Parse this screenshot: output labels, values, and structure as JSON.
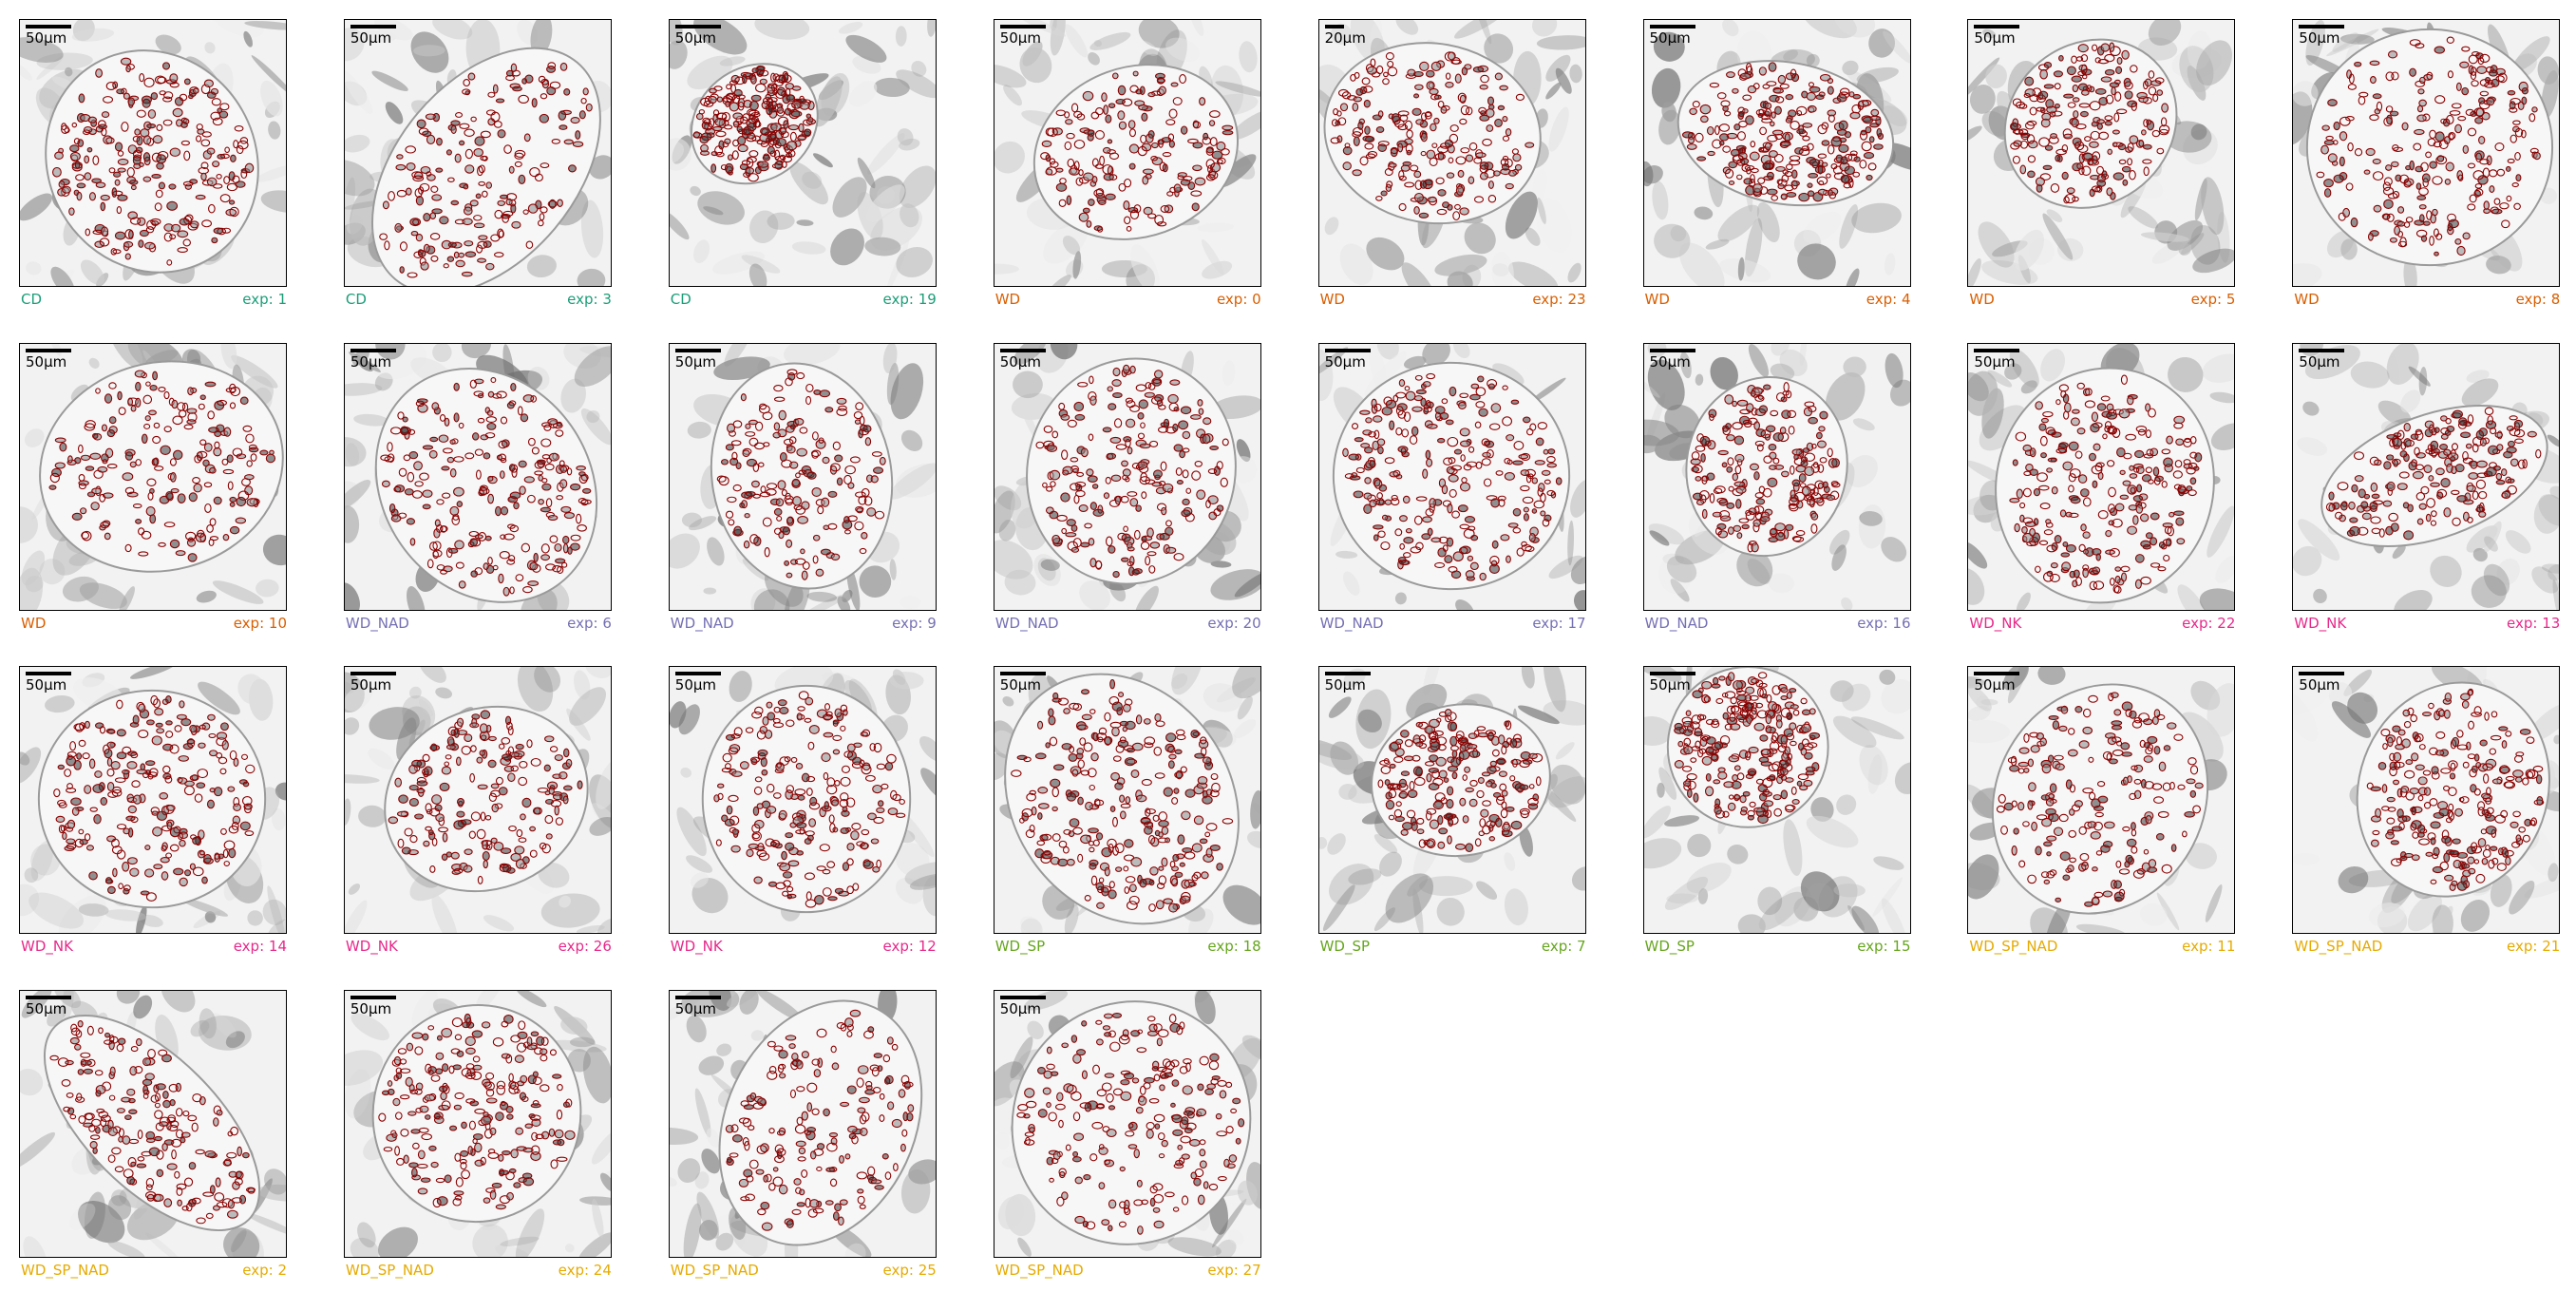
{
  "colors": {
    "CD": "#1b9e77",
    "WD": "#d95f02",
    "WD_NAD": "#7570b3",
    "WD_NK": "#e7298a",
    "WD_SP": "#66a61e",
    "WD_SP_NAD": "#e6ab02",
    "contour": "#8b0000"
  },
  "panels": [
    {
      "group": "CD",
      "exp": "exp: 1",
      "scale": "50μm"
    },
    {
      "group": "CD",
      "exp": "exp: 3",
      "scale": "50μm"
    },
    {
      "group": "CD",
      "exp": "exp: 19",
      "scale": "50μm"
    },
    {
      "group": "WD",
      "exp": "exp: 0",
      "scale": "50μm"
    },
    {
      "group": "WD",
      "exp": "exp: 23",
      "scale": "20μm"
    },
    {
      "group": "WD",
      "exp": "exp: 4",
      "scale": "50μm"
    },
    {
      "group": "WD",
      "exp": "exp: 5",
      "scale": "50μm"
    },
    {
      "group": "WD",
      "exp": "exp: 8",
      "scale": "50μm"
    },
    {
      "group": "WD",
      "exp": "exp: 10",
      "scale": "50μm"
    },
    {
      "group": "WD_NAD",
      "exp": "exp: 6",
      "scale": "50μm"
    },
    {
      "group": "WD_NAD",
      "exp": "exp: 9",
      "scale": "50μm"
    },
    {
      "group": "WD_NAD",
      "exp": "exp: 20",
      "scale": "50μm"
    },
    {
      "group": "WD_NAD",
      "exp": "exp: 17",
      "scale": "50μm"
    },
    {
      "group": "WD_NAD",
      "exp": "exp: 16",
      "scale": "50μm"
    },
    {
      "group": "WD_NK",
      "exp": "exp: 22",
      "scale": "50μm"
    },
    {
      "group": "WD_NK",
      "exp": "exp: 13",
      "scale": "50μm"
    },
    {
      "group": "WD_NK",
      "exp": "exp: 14",
      "scale": "50μm"
    },
    {
      "group": "WD_NK",
      "exp": "exp: 26",
      "scale": "50μm"
    },
    {
      "group": "WD_NK",
      "exp": "exp: 12",
      "scale": "50μm"
    },
    {
      "group": "WD_SP",
      "exp": "exp: 18",
      "scale": "50μm"
    },
    {
      "group": "WD_SP",
      "exp": "exp: 7",
      "scale": "50μm"
    },
    {
      "group": "WD_SP",
      "exp": "exp: 15",
      "scale": "50μm"
    },
    {
      "group": "WD_SP_NAD",
      "exp": "exp: 11",
      "scale": "50μm"
    },
    {
      "group": "WD_SP_NAD",
      "exp": "exp: 21",
      "scale": "50μm"
    },
    {
      "group": "WD_SP_NAD",
      "exp": "exp: 2",
      "scale": "50μm"
    },
    {
      "group": "WD_SP_NAD",
      "exp": "exp: 24",
      "scale": "50μm"
    },
    {
      "group": "WD_SP_NAD",
      "exp": "exp: 25",
      "scale": "50μm"
    },
    {
      "group": "WD_SP_NAD",
      "exp": "exp: 27",
      "scale": "50μm"
    }
  ]
}
